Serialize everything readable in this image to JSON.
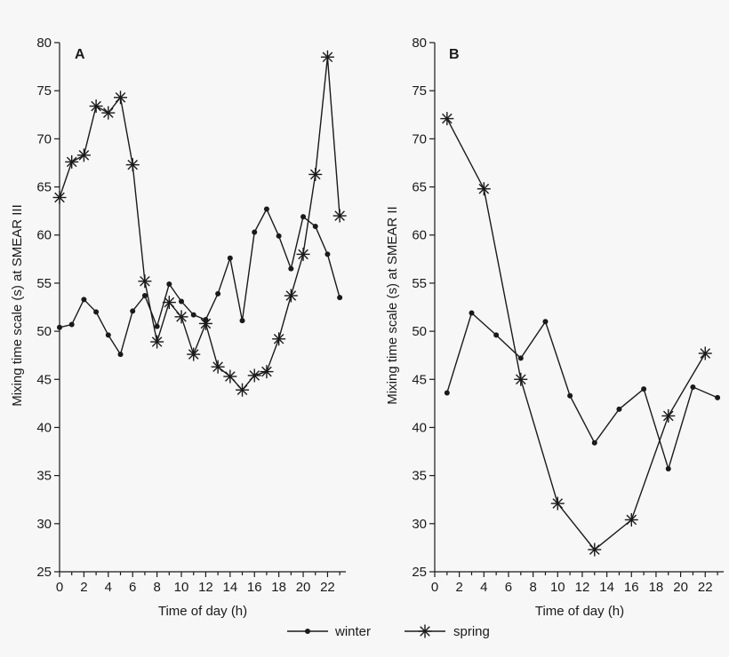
{
  "chart_data": [
    {
      "panel": "A",
      "type": "line",
      "ylabel": "Mixing time scale (s) at SMEAR III",
      "xlabel": "Time of day (h)",
      "xlim": [
        0,
        23.5
      ],
      "ylim": [
        25,
        80
      ],
      "xticks": [
        0,
        2,
        4,
        6,
        8,
        10,
        12,
        14,
        16,
        18,
        20,
        22
      ],
      "yticks": [
        25,
        30,
        35,
        40,
        45,
        50,
        55,
        60,
        65,
        70,
        75,
        80
      ],
      "series": [
        {
          "name": "winter",
          "marker": "dot",
          "x": [
            0,
            1,
            2,
            3,
            4,
            5,
            6,
            7,
            8,
            9,
            10,
            11,
            12,
            13,
            14,
            15,
            16,
            17,
            18,
            19,
            20,
            21,
            22,
            23
          ],
          "y": [
            50.4,
            50.7,
            53.3,
            52,
            49.6,
            47.6,
            52.1,
            53.7,
            50.5,
            54.9,
            53.1,
            51.7,
            51.2,
            53.9,
            57.6,
            51.1,
            60.3,
            62.7,
            59.9,
            56.5,
            61.9,
            60.9,
            58,
            53.5
          ]
        },
        {
          "name": "spring",
          "marker": "star",
          "x": [
            0,
            1,
            2,
            3,
            4,
            5,
            6,
            7,
            8,
            9,
            10,
            11,
            12,
            13,
            14,
            15,
            16,
            17,
            18,
            19,
            20,
            21,
            22,
            23
          ],
          "y": [
            63.9,
            67.6,
            68.3,
            73.4,
            72.7,
            74.3,
            67.3,
            55.2,
            48.9,
            53,
            51.5,
            47.6,
            50.8,
            46.3,
            45.3,
            43.9,
            45.4,
            45.8,
            49.2,
            53.7,
            58,
            66.3,
            78.5,
            62
          ]
        }
      ]
    },
    {
      "panel": "B",
      "type": "line",
      "ylabel": "Mixing time scale (s) at SMEAR II",
      "xlabel": "Time of day (h)",
      "xlim": [
        0,
        23.5
      ],
      "ylim": [
        25,
        80
      ],
      "xticks": [
        0,
        2,
        4,
        6,
        8,
        10,
        12,
        14,
        16,
        18,
        20,
        22
      ],
      "yticks": [
        25,
        30,
        35,
        40,
        45,
        50,
        55,
        60,
        65,
        70,
        75,
        80
      ],
      "series": [
        {
          "name": "winter",
          "marker": "dot",
          "x": [
            1,
            3,
            5,
            7,
            9,
            11,
            13,
            15,
            17,
            19,
            21,
            23
          ],
          "y": [
            43.6,
            51.9,
            49.6,
            47.2,
            51,
            43.3,
            38.4,
            41.9,
            44,
            35.7,
            44.2,
            43.1
          ]
        },
        {
          "name": "spring",
          "marker": "star",
          "x": [
            1,
            4,
            7,
            10,
            13,
            16,
            19,
            22
          ],
          "y": [
            72.1,
            64.8,
            45,
            32.1,
            27.3,
            30.4,
            41.2,
            47.7
          ]
        }
      ]
    }
  ],
  "legend": {
    "placement": "bottom-center",
    "entries": [
      {
        "label": "winter",
        "marker": "dot"
      },
      {
        "label": "spring",
        "marker": "star"
      }
    ]
  },
  "colors": {
    "ink": "#1a1a1a",
    "background": "#f7f7f7"
  }
}
